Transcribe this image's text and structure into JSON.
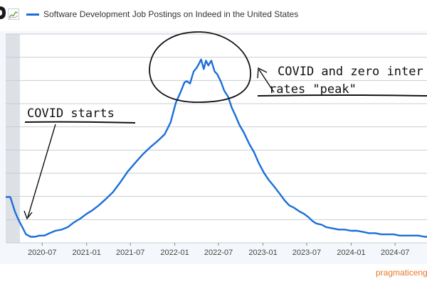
{
  "chart_data": {
    "type": "line",
    "title": "",
    "xlabel": "",
    "ylabel": "",
    "grid": true,
    "legend_position": "top-left",
    "xlim": [
      "2020-02-01",
      "2024-11-10"
    ],
    "ylim": [
      62,
      235
    ],
    "x_ticks": [
      "2020-07",
      "2021-01",
      "2021-07",
      "2022-01",
      "2022-07",
      "2023-01",
      "2023-07",
      "2024-01",
      "2024-07"
    ],
    "series": [
      {
        "name": "Software Development Job Postings on Indeed in the United States",
        "color": "#1a6fd8",
        "x": [
          "2020-02-01",
          "2020-02-20",
          "2020-03-10",
          "2020-03-25",
          "2020-04-10",
          "2020-04-25",
          "2020-05-15",
          "2020-06-01",
          "2020-06-20",
          "2020-07-10",
          "2020-08-01",
          "2020-08-25",
          "2020-09-20",
          "2020-10-15",
          "2020-11-10",
          "2020-12-05",
          "2021-01-01",
          "2021-01-25",
          "2021-02-20",
          "2021-03-20",
          "2021-04-20",
          "2021-05-20",
          "2021-06-20",
          "2021-07-20",
          "2021-08-20",
          "2021-09-20",
          "2021-10-20",
          "2021-11-20",
          "2021-12-15",
          "2022-01-05",
          "2022-01-25",
          "2022-02-10",
          "2022-02-20",
          "2022-03-05",
          "2022-03-20",
          "2022-04-01",
          "2022-04-10",
          "2022-04-20",
          "2022-05-01",
          "2022-05-10",
          "2022-05-20",
          "2022-06-01",
          "2022-06-15",
          "2022-06-25",
          "2022-07-10",
          "2022-07-25",
          "2022-08-10",
          "2022-08-25",
          "2022-09-10",
          "2022-09-25",
          "2022-10-15",
          "2022-11-05",
          "2022-11-25",
          "2022-12-15",
          "2023-01-05",
          "2023-01-25",
          "2023-02-15",
          "2023-03-10",
          "2023-04-01",
          "2023-04-20",
          "2023-05-10",
          "2023-06-01",
          "2023-06-20",
          "2023-07-10",
          "2023-07-25",
          "2023-08-10",
          "2023-09-01",
          "2023-09-20",
          "2023-10-15",
          "2023-11-10",
          "2023-12-05",
          "2024-01-01",
          "2024-01-25",
          "2024-02-20",
          "2024-03-15",
          "2024-04-10",
          "2024-05-05",
          "2024-06-01",
          "2024-06-25",
          "2024-07-20",
          "2024-08-15",
          "2024-09-10",
          "2024-10-05",
          "2024-11-01",
          "2024-11-10"
        ],
        "y": [
          100,
          100,
          88,
          81,
          75,
          69,
          67,
          67,
          68,
          68,
          70,
          72,
          73,
          75,
          79,
          82,
          86,
          89,
          93,
          98,
          104,
          112,
          121,
          128,
          135,
          141,
          146,
          152,
          162,
          178,
          187,
          195,
          196,
          194,
          204,
          207,
          210,
          214,
          206,
          213,
          209,
          213,
          204,
          202,
          196,
          188,
          183,
          174,
          167,
          160,
          153,
          144,
          137,
          128,
          120,
          114,
          109,
          103,
          97,
          93,
          91,
          88,
          86,
          83,
          80,
          78,
          77,
          75,
          74,
          73,
          73,
          72,
          72,
          71,
          70,
          70,
          69,
          69,
          69,
          68,
          68,
          68,
          68,
          67,
          67
        ]
      }
    ]
  },
  "header": {
    "logo_icon": "fred-logo-fragment-icon",
    "chart_type_icon": "line-chart-icon"
  },
  "annotations": {
    "covid_starts": "COVID starts",
    "peak_line1": "COVID and zero inter",
    "peak_line2": "rates \"peak\""
  },
  "watermark": "pragmaticeng"
}
